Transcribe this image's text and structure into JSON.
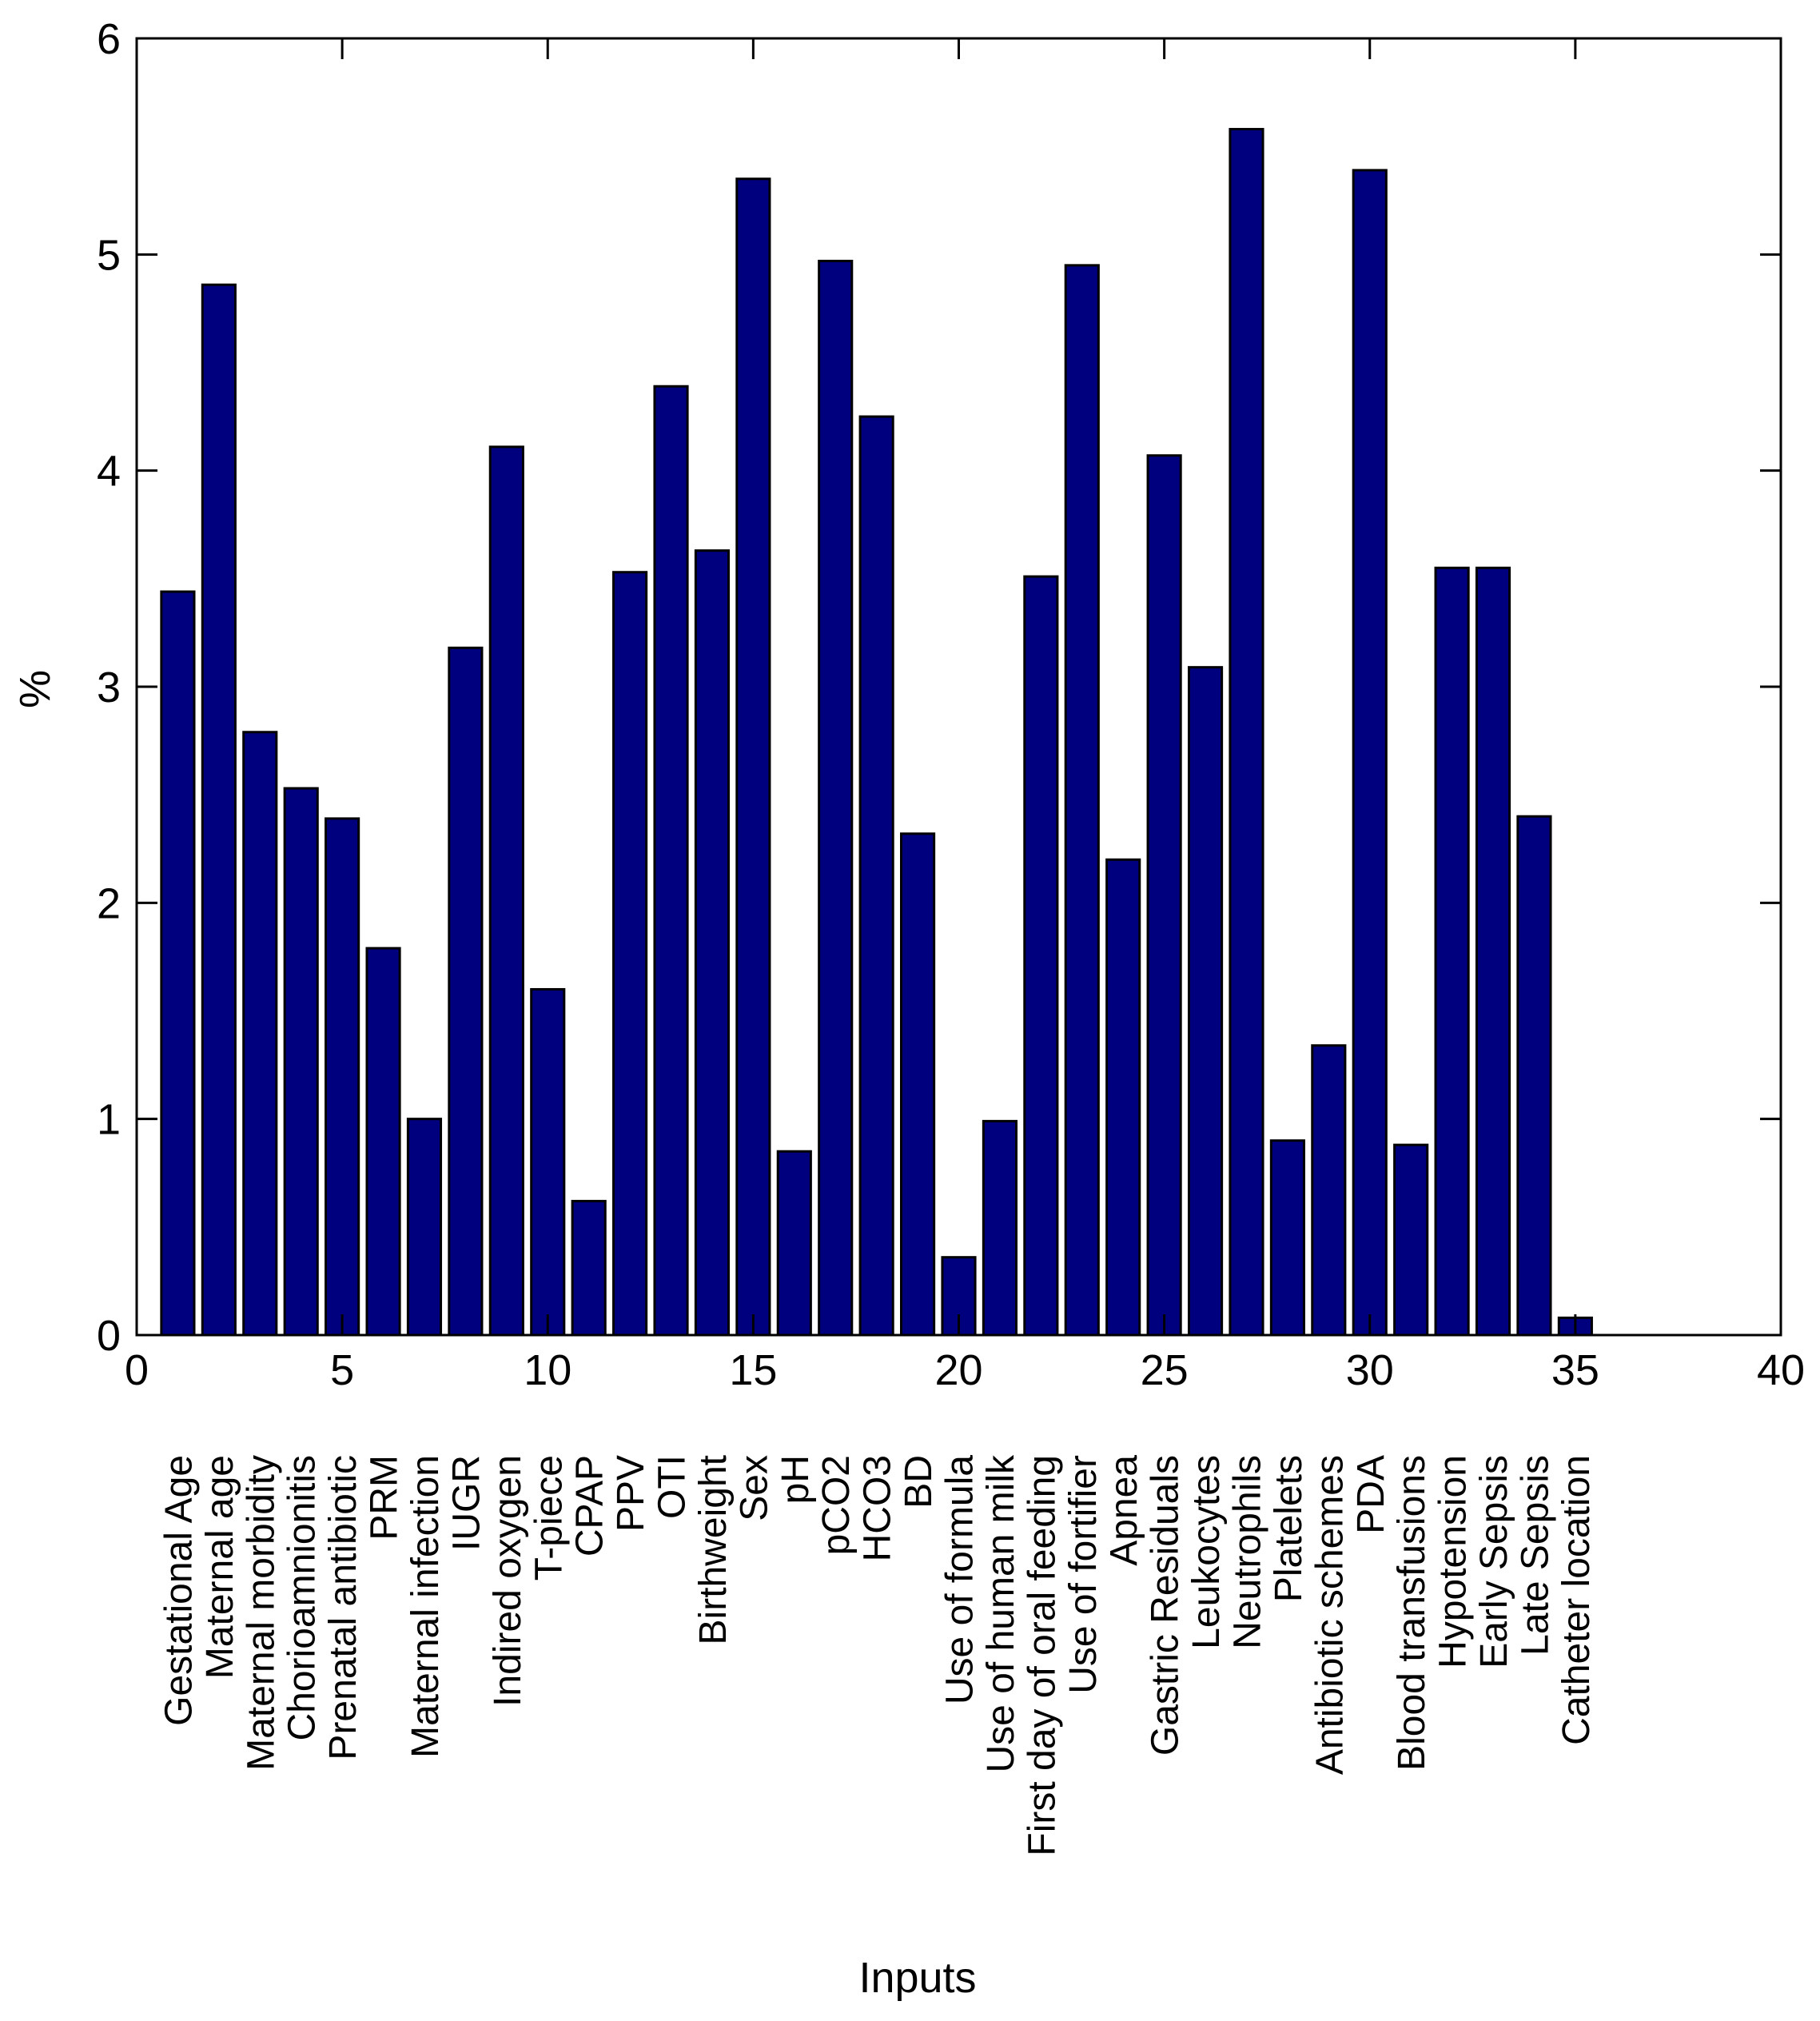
{
  "chart_data": {
    "type": "bar",
    "title": "",
    "xlabel": "Inputs",
    "ylabel": "%",
    "xlim": [
      0,
      40
    ],
    "ylim": [
      0,
      6
    ],
    "xticks": [
      "0",
      "5",
      "10",
      "15",
      "20",
      "25",
      "30",
      "35",
      "40"
    ],
    "yticks": [
      "0",
      "1",
      "2",
      "3",
      "4",
      "5",
      "6"
    ],
    "grid": false,
    "bar_color": "#00007f",
    "x": [
      1,
      2,
      3,
      4,
      5,
      6,
      7,
      8,
      9,
      10,
      11,
      12,
      13,
      14,
      15,
      16,
      17,
      18,
      19,
      20,
      21,
      22,
      23,
      24,
      25,
      26,
      27,
      28,
      29,
      30,
      31,
      32,
      33,
      34,
      35
    ],
    "categories": [
      "Gestational Age",
      "Maternal age",
      "Maternal morbidity",
      "Chorioamnionitis",
      "Prenatal antibiotic",
      "PRM",
      "Maternal infection",
      "IUGR",
      "Indired oxygen",
      "T-piece",
      "CPAP",
      "PPV",
      "OTI",
      "Birthweight",
      "Sex",
      "pH",
      "pCO2",
      "HCO3",
      "BD",
      "Use of formula",
      "Use of human milk",
      "First day of oral feeding",
      "Use of fortifier",
      "Apnea",
      "Gastric Residuals",
      "Leukocytes",
      "Neutrophils",
      "Platelets",
      "Antibiotic schemes",
      "PDA",
      "Blood transfusions",
      "Hypotension",
      "Early Sepsis",
      "Late Sepsis",
      "Catheter location"
    ],
    "values": [
      3.44,
      4.86,
      2.79,
      2.53,
      2.39,
      1.79,
      1.0,
      3.18,
      4.11,
      1.6,
      0.62,
      3.53,
      4.39,
      3.63,
      5.35,
      0.85,
      4.97,
      4.25,
      2.32,
      0.36,
      0.99,
      3.51,
      4.95,
      2.2,
      4.07,
      3.09,
      5.58,
      0.9,
      1.34,
      5.39,
      0.88,
      3.55,
      3.55,
      2.4,
      0.08
    ]
  }
}
